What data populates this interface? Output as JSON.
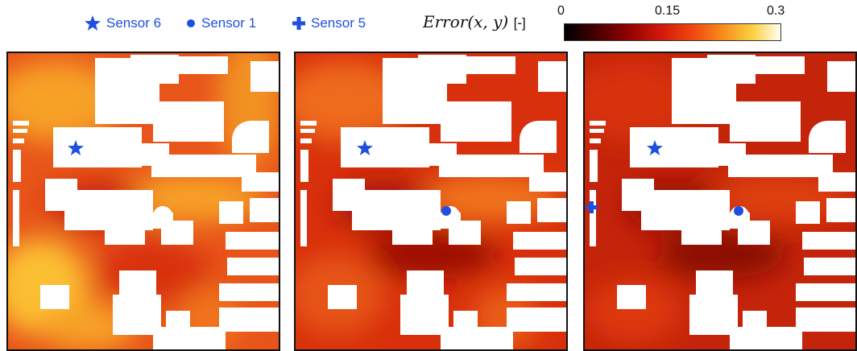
{
  "legend": [
    {
      "symbol": "star",
      "label": "Sensor 6"
    },
    {
      "symbol": "dot",
      "label": "Sensor 1"
    },
    {
      "symbol": "cross",
      "label": "Sensor 5"
    }
  ],
  "colorbar": {
    "label": "Error(x, y)",
    "unit": "[-]",
    "ticks": [
      "0",
      "0.15",
      "0.3"
    ],
    "min": 0,
    "max": 0.3,
    "colormap": [
      "#000000",
      "#8b0000",
      "#d31a0a",
      "#f8901e",
      "#fbd040",
      "#fffff0"
    ]
  },
  "panels": [
    {
      "id": "panel-1",
      "sensors": [
        "Sensor 6"
      ],
      "error_level": "high"
    },
    {
      "id": "panel-2",
      "sensors": [
        "Sensor 6",
        "Sensor 1"
      ],
      "error_level": "medium"
    },
    {
      "id": "panel-3",
      "sensors": [
        "Sensor 6",
        "Sensor 1",
        "Sensor 5"
      ],
      "error_level": "low"
    }
  ],
  "colors": {
    "marker": "#1f4fe0",
    "building": "#ffffff"
  }
}
